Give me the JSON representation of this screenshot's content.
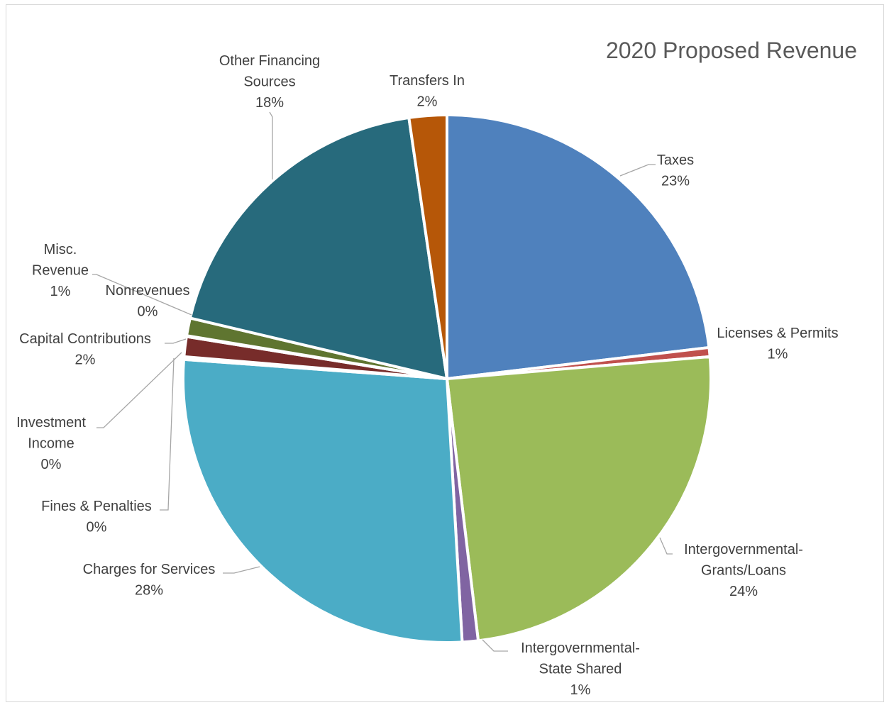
{
  "chart_data": {
    "type": "pie",
    "title": "2020 Proposed Revenue",
    "slices": [
      {
        "name": "Taxes",
        "value": 23,
        "label_lines": [
          "Taxes",
          "23%"
        ],
        "color": "#4f81bd"
      },
      {
        "name": "Licenses & Permits",
        "value": 1,
        "label_lines": [
          "Licenses & Permits",
          "1%"
        ],
        "color": "#c0504d"
      },
      {
        "name": "Intergovernmental-Grants/Loans",
        "value": 24,
        "label_lines": [
          "Intergovernmental-",
          "Grants/Loans",
          "24%"
        ],
        "color": "#9bbb59"
      },
      {
        "name": "Intergovernmental-State Shared",
        "value": 1,
        "label_lines": [
          "Intergovernmental-",
          "State Shared",
          "1%"
        ],
        "color": "#8064a2"
      },
      {
        "name": "Charges for Services",
        "value": 28,
        "label_lines": [
          "Charges for Services",
          "28%"
        ],
        "color": "#4bacc6"
      },
      {
        "name": "Fines & Penalties",
        "value": 0,
        "label_lines": [
          "Fines & Penalties",
          "0%"
        ],
        "color": "#f79646"
      },
      {
        "name": "Investment Income",
        "value": 0,
        "label_lines": [
          "Investment",
          "Income",
          "0%"
        ],
        "color": "#2c4d75"
      },
      {
        "name": "Capital Contributions",
        "value": 2,
        "label_lines": [
          "Capital Contributions",
          "2%"
        ],
        "color": "#772c2a"
      },
      {
        "name": "Nonrevenues",
        "value": 0,
        "label_lines": [
          "Nonrevenues",
          "0%"
        ],
        "color": "#5f497a"
      },
      {
        "name": "Misc. Revenue",
        "value": 1,
        "label_lines": [
          "Misc.",
          "Revenue",
          "1%"
        ],
        "color": "#5f7530"
      },
      {
        "name": "Other Financing Sources",
        "value": 18,
        "label_lines": [
          "Other Financing",
          "Sources",
          "18%"
        ],
        "color": "#276a7c"
      },
      {
        "name": "Transfers In",
        "value": 2,
        "label_lines": [
          "Transfers In",
          "2%"
        ],
        "color": "#b65708"
      }
    ]
  }
}
